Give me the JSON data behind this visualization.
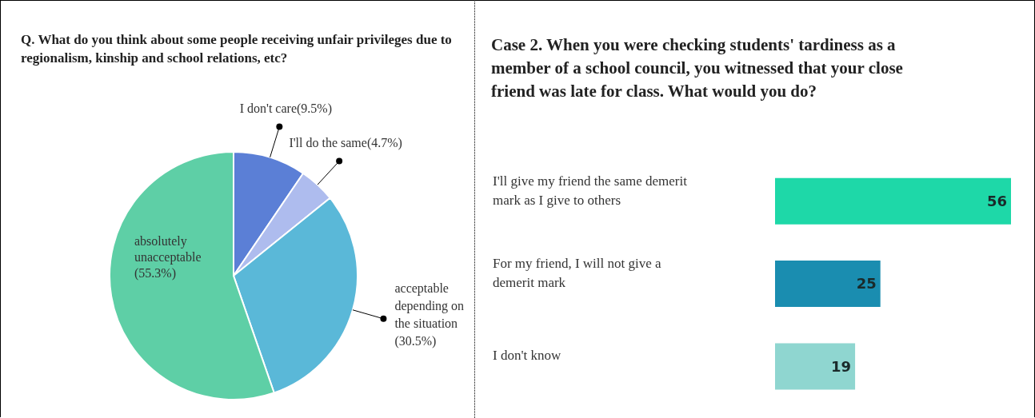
{
  "chart_data": [
    {
      "type": "pie",
      "title": "Q. What do you think about some people receiving unfair privileges due to regionalism, kinship and school relations, etc?",
      "categories": [
        "I don't care",
        "I'll do the same",
        "acceptable depending on the situation",
        "absolutely unacceptable"
      ],
      "values": [
        9.5,
        4.7,
        30.5,
        55.3
      ],
      "value_labels": [
        "(9.5%)",
        "(4.7%)",
        "(30.5%)",
        "(55.3%)"
      ],
      "colors": [
        "#5b7fd6",
        "#aebcee",
        "#5ab8d8",
        "#5ecfa6"
      ],
      "legend": false
    },
    {
      "type": "bar",
      "orientation": "horizontal",
      "title": "Case 2. When you were checking students' tardiness as a member of a school council, you witnessed that your close friend was late for class. What would you do?",
      "categories": [
        "I'll give my friend the same demerit mark as I give to others",
        "For my friend, I will not give a demerit mark",
        "I don't know"
      ],
      "values": [
        56,
        25,
        19
      ],
      "colors": [
        "#1ed8a8",
        "#1a8db0",
        "#8fd6d0"
      ],
      "data_labels": true,
      "legend": false
    }
  ]
}
